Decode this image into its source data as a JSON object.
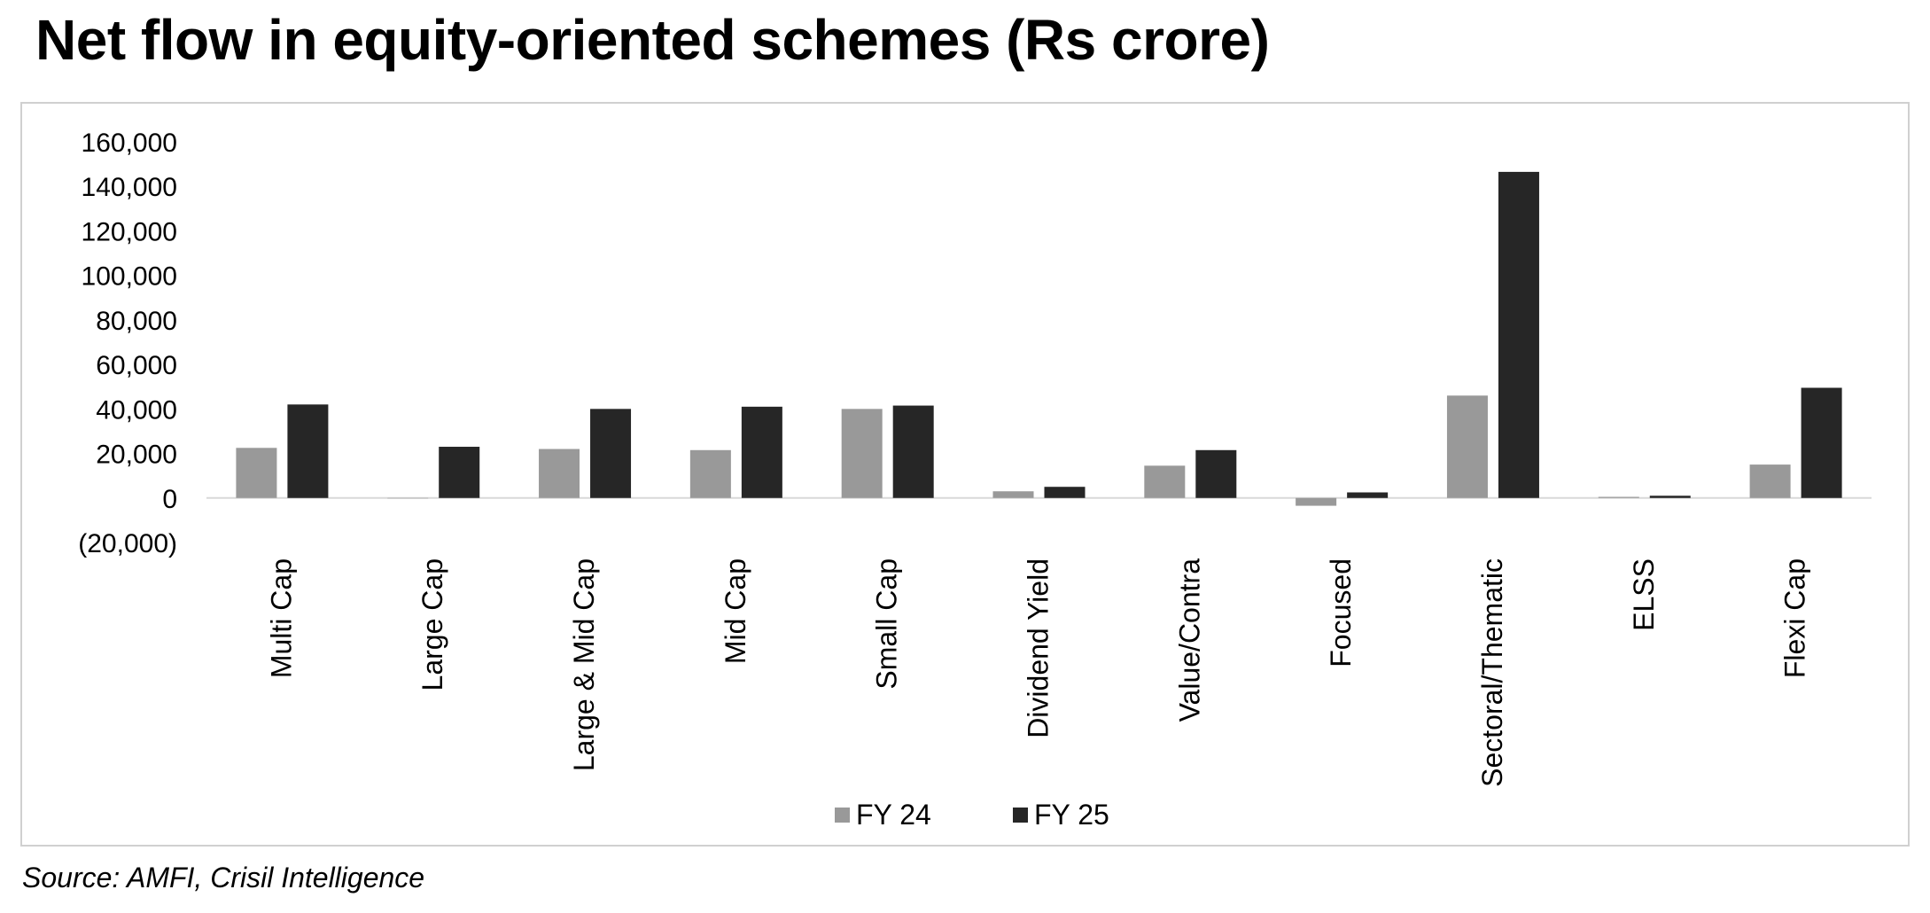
{
  "title": "Net flow in equity-oriented schemes (Rs crore)",
  "source": "Source: AMFI, Crisil Intelligence",
  "colors": {
    "fy24": "#999999",
    "fy25": "#262626",
    "axis": "#d9d9d9"
  },
  "chart_data": {
    "type": "bar",
    "title": "Net flow in equity-oriented schemes (Rs crore)",
    "xlabel": "",
    "ylabel": "",
    "ylim": [
      -20000,
      160000
    ],
    "yticks": [
      -20000,
      0,
      20000,
      40000,
      60000,
      80000,
      100000,
      120000,
      140000,
      160000
    ],
    "ytick_labels": [
      "(20,000)",
      "0",
      "20,000",
      "40,000",
      "60,000",
      "80,000",
      "100,000",
      "120,000",
      "140,000",
      "160,000"
    ],
    "categories": [
      "Multi Cap",
      "Large Cap",
      "Large & Mid Cap",
      "Mid Cap",
      "Small Cap",
      "Dividend Yield",
      "Value/Contra",
      "Focused",
      "Sectoral/Thematic",
      "ELSS",
      "Flexi Cap"
    ],
    "series": [
      {
        "name": "FY 24",
        "values": [
          22500,
          0,
          22000,
          21500,
          40000,
          3000,
          14500,
          -3500,
          46000,
          500,
          15000
        ]
      },
      {
        "name": "FY 25",
        "values": [
          42000,
          23000,
          40000,
          41000,
          41500,
          5000,
          21500,
          2500,
          146500,
          1000,
          49500
        ]
      }
    ],
    "grid": false,
    "legend": "bottom-center"
  }
}
